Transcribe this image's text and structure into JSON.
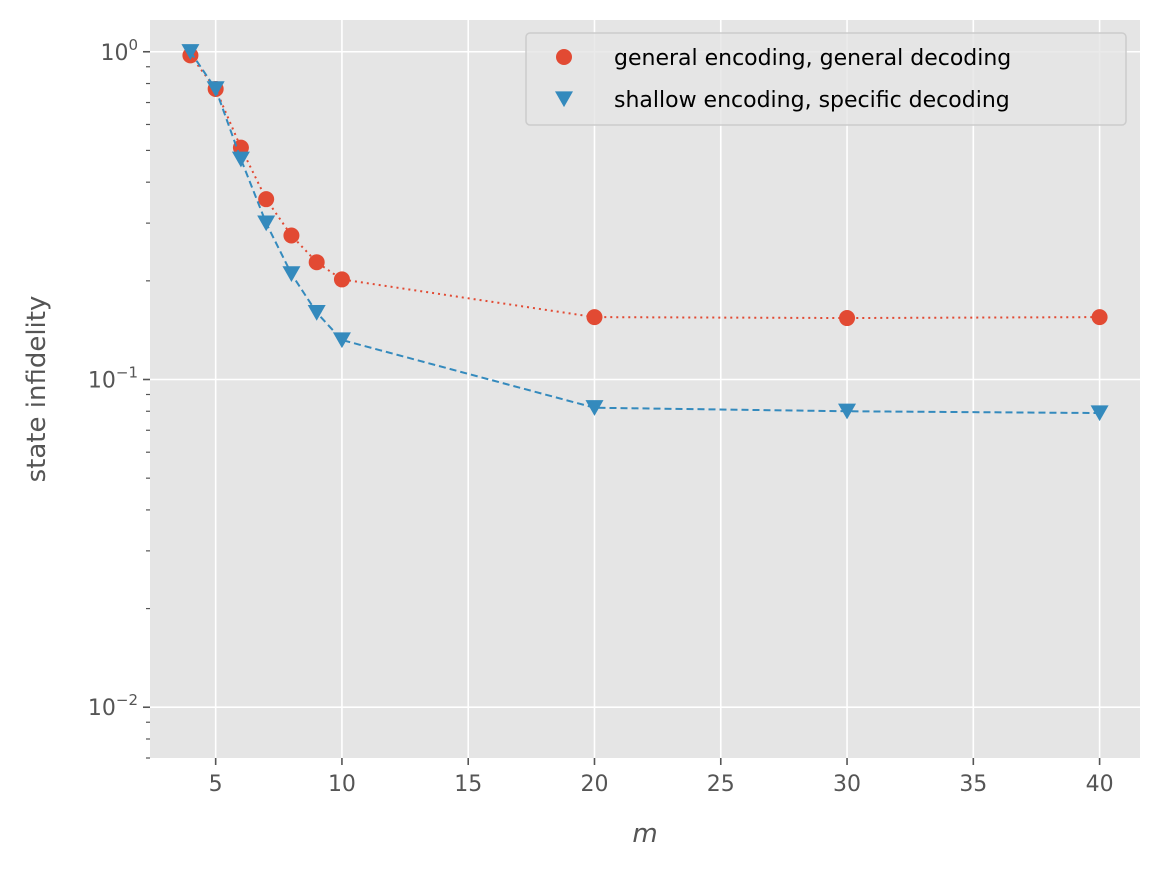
{
  "chart_data": {
    "type": "line",
    "title": "",
    "xlabel": "m",
    "ylabel": "state infidelity",
    "yscale": "log",
    "xlim": [
      2.4,
      41.6
    ],
    "ylim": [
      0.007,
      1.25
    ],
    "grid": true,
    "legend_position": "top-right",
    "x_ticks": [
      5,
      10,
      15,
      20,
      25,
      30,
      35,
      40
    ],
    "x_tick_labels": [
      "5",
      "10",
      "15",
      "20",
      "25",
      "30",
      "35",
      "40"
    ],
    "y_ticks": [
      {
        "value": 1,
        "base": "10",
        "exp": "0"
      },
      {
        "value": 0.1,
        "base": "10",
        "exp": "−1"
      },
      {
        "value": 0.01,
        "base": "10",
        "exp": "−2"
      }
    ],
    "series": [
      {
        "name": "general encoding, general decoding",
        "color": "#E24A33",
        "marker": "circle",
        "linestyle": "dotted",
        "x": [
          4,
          5,
          6,
          7,
          8,
          9,
          10,
          20,
          30,
          40
        ],
        "values": [
          0.975,
          0.77,
          0.51,
          0.355,
          0.275,
          0.228,
          0.202,
          0.155,
          0.154,
          0.155
        ]
      },
      {
        "name": "shallow encoding, specific decoding",
        "color": "#348ABD",
        "marker": "triangle-down",
        "linestyle": "dashed",
        "x": [
          4,
          5,
          6,
          7,
          8,
          9,
          10,
          20,
          30,
          40
        ],
        "values": [
          1.0,
          0.77,
          0.47,
          0.3,
          0.21,
          0.16,
          0.132,
          0.082,
          0.08,
          0.079
        ]
      }
    ]
  }
}
